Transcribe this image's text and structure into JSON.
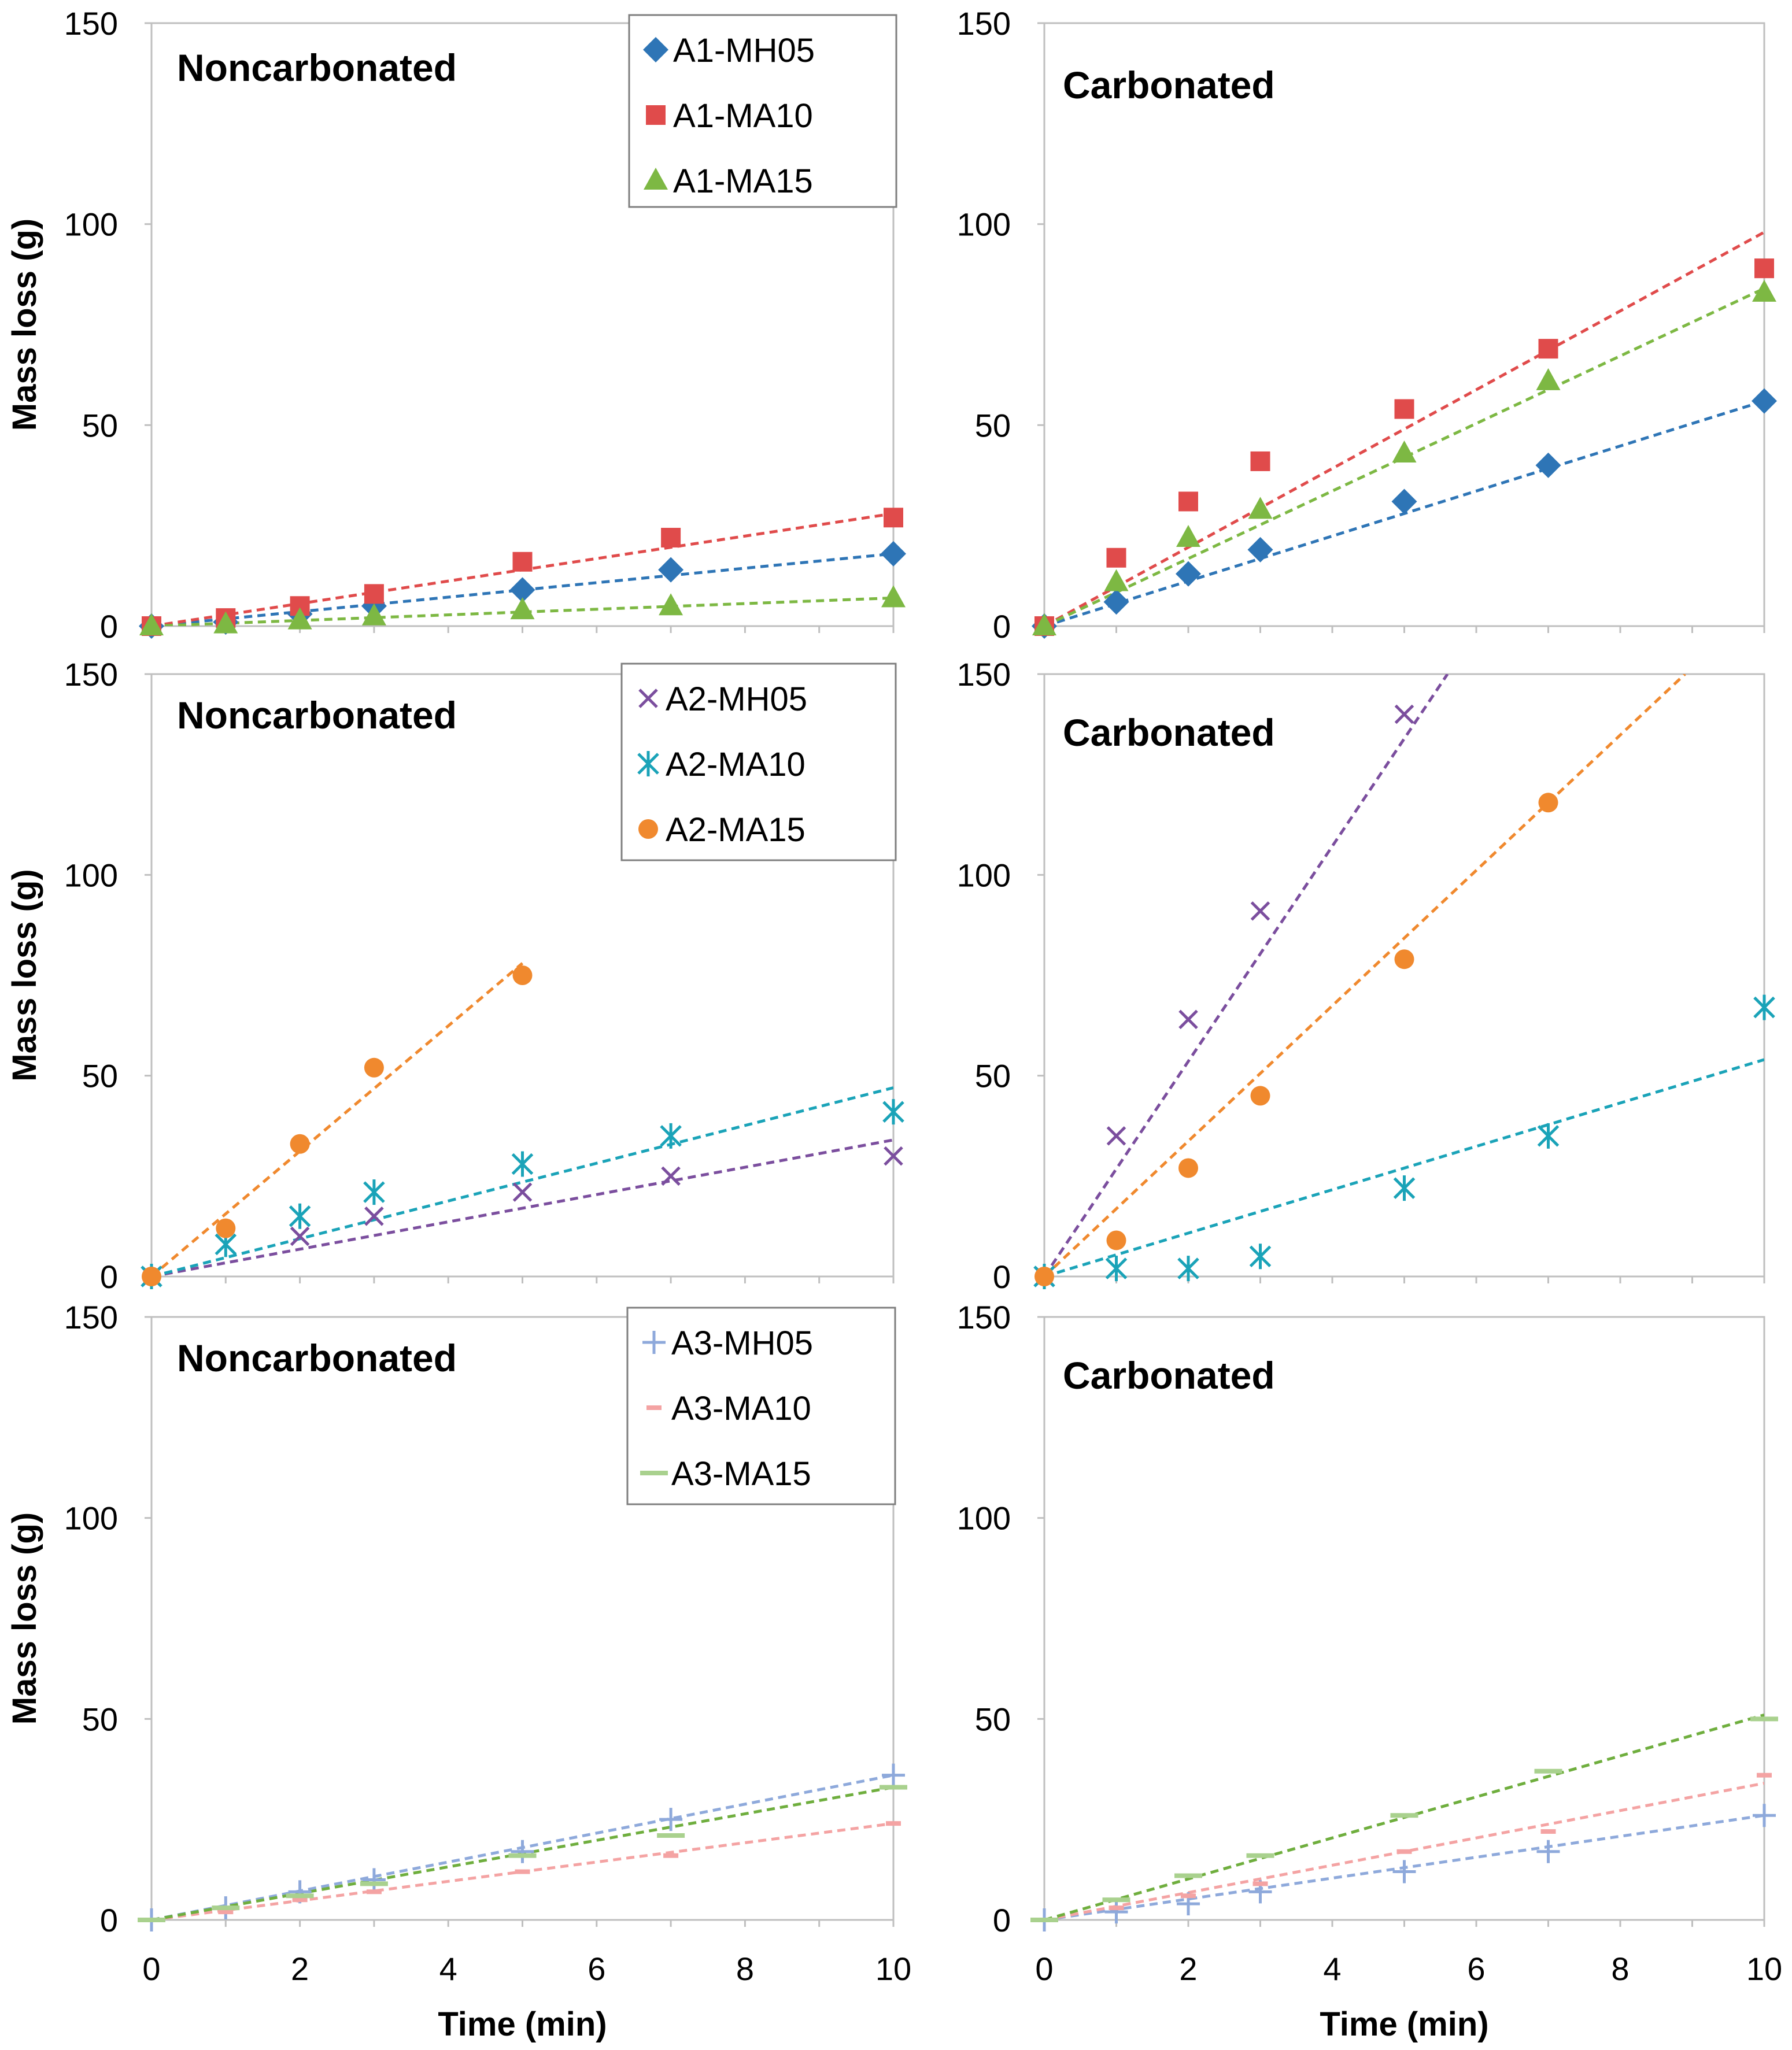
{
  "chart_data": {
    "type": "scatter",
    "description_note": "Six scatter panels with dashed linear trend lines (3 rows x 2 columns).",
    "shared": {
      "xlabel": "Time (min)",
      "ylabel": "Mass loss (g)",
      "xlim": [
        0,
        10
      ],
      "ylim": [
        0,
        150
      ],
      "xticks": [
        "0",
        "2",
        "4",
        "6",
        "8",
        "10"
      ],
      "yticks": [
        "0",
        "50",
        "100",
        "150"
      ]
    },
    "panels": [
      {
        "id": "A1-non",
        "row": 0,
        "col": 0,
        "title": "Noncarbonated",
        "legend": true,
        "series": [
          {
            "name": "A1-MH05",
            "marker": "diamond",
            "color": "#2E75B6",
            "x": [
              0,
              1,
              2,
              3,
              5,
              7,
              10
            ],
            "y": [
              0,
              1,
              3,
              5,
              9,
              14,
              18
            ],
            "trend": [
              0,
              0,
              10,
              18
            ]
          },
          {
            "name": "A1-MA10",
            "marker": "square",
            "color": "#E04B4B",
            "x": [
              0,
              1,
              2,
              3,
              5,
              7,
              10
            ],
            "y": [
              0,
              2,
              5,
              8,
              16,
              22,
              27
            ],
            "trend": [
              0,
              0,
              10,
              28
            ]
          },
          {
            "name": "A1-MA15",
            "marker": "triangle",
            "color": "#7DB843",
            "x": [
              0,
              1,
              2,
              3,
              5,
              7,
              10
            ],
            "y": [
              0,
              0.5,
              1.5,
              2.5,
              4,
              5,
              7
            ],
            "trend": [
              0,
              0,
              10,
              7
            ]
          }
        ]
      },
      {
        "id": "A1-carb",
        "row": 0,
        "col": 1,
        "title": "Carbonated",
        "legend": false,
        "series": [
          {
            "name": "A1-MH05",
            "marker": "diamond",
            "color": "#2E75B6",
            "x": [
              0,
              1,
              2,
              3,
              5,
              7,
              10
            ],
            "y": [
              0,
              6,
              13,
              19,
              31,
              40,
              56
            ],
            "trend": [
              0,
              0,
              10,
              56
            ]
          },
          {
            "name": "A1-MA10",
            "marker": "square",
            "color": "#E04B4B",
            "x": [
              0,
              1,
              2,
              3,
              5,
              7,
              10
            ],
            "y": [
              0,
              17,
              31,
              41,
              54,
              69,
              89
            ],
            "trend": [
              0,
              0,
              10,
              98
            ]
          },
          {
            "name": "A1-MA15",
            "marker": "triangle",
            "color": "#7DB843",
            "x": [
              0,
              1,
              2,
              3,
              5,
              7,
              10
            ],
            "y": [
              0,
              11,
              22,
              29,
              43,
              61,
              83
            ],
            "trend": [
              0,
              0,
              10,
              84
            ]
          }
        ]
      },
      {
        "id": "A2-non",
        "row": 1,
        "col": 0,
        "title": "Noncarbonated",
        "legend": true,
        "series": [
          {
            "name": "A2-MH05",
            "marker": "x",
            "color": "#7B4E9E",
            "x": [
              0,
              2,
              3,
              5,
              7,
              10
            ],
            "y": [
              0,
              10,
              15,
              21,
              25,
              30
            ],
            "trend": [
              0,
              0,
              10,
              34
            ]
          },
          {
            "name": "A2-MA10",
            "marker": "star",
            "color": "#1AA3B8",
            "x": [
              0,
              1,
              2,
              3,
              5,
              7,
              10
            ],
            "y": [
              0,
              8,
              15,
              21,
              28,
              35,
              41
            ],
            "trend": [
              0,
              0,
              10,
              47
            ]
          },
          {
            "name": "A2-MA15",
            "marker": "circle",
            "color": "#F0892E",
            "x": [
              0,
              1,
              2,
              3,
              5
            ],
            "y": [
              0,
              12,
              33,
              52,
              75
            ],
            "trend": [
              0,
              0,
              5,
              78
            ]
          }
        ]
      },
      {
        "id": "A2-carb",
        "row": 1,
        "col": 1,
        "title": "Carbonated",
        "legend": false,
        "series": [
          {
            "name": "A2-MH05",
            "marker": "x",
            "color": "#7B4E9E",
            "x": [
              0,
              1,
              2,
              3,
              5
            ],
            "y": [
              0,
              35,
              64,
              91,
              140
            ],
            "trend": [
              0,
              0,
              5.6,
              150
            ]
          },
          {
            "name": "A2-MA10",
            "marker": "star",
            "color": "#1AA3B8",
            "x": [
              0,
              1,
              2,
              3,
              5,
              7,
              10
            ],
            "y": [
              0,
              2,
              2,
              5,
              22,
              35,
              67
            ],
            "trend": [
              0,
              0,
              10,
              54
            ]
          },
          {
            "name": "A2-MA15",
            "marker": "circle",
            "color": "#F0892E",
            "x": [
              0,
              1,
              2,
              3,
              5,
              7
            ],
            "y": [
              0,
              9,
              27,
              45,
              79,
              118
            ],
            "trend": [
              0,
              0,
              8.9,
              150
            ]
          }
        ]
      },
      {
        "id": "A3-non",
        "row": 2,
        "col": 0,
        "title": "Noncarbonated",
        "legend": true,
        "series": [
          {
            "name": "A3-MH05",
            "marker": "plus",
            "color": "#8EA9DB",
            "x": [
              0,
              1,
              2,
              3,
              5,
              7,
              10
            ],
            "y": [
              0,
              3,
              7,
              10,
              17,
              25,
              36
            ],
            "trend": [
              0,
              0,
              10,
              36
            ]
          },
          {
            "name": "A3-MA10",
            "marker": "dash",
            "color": "#F4A3A3",
            "x": [
              0,
              1,
              2,
              3,
              5,
              7,
              10
            ],
            "y": [
              0,
              2,
              5,
              7,
              12,
              16,
              24
            ],
            "trend": [
              0,
              0,
              10,
              24
            ]
          },
          {
            "name": "A3-MA15",
            "marker": "longdash",
            "color": "#A9D18E",
            "x": [
              0,
              1,
              2,
              3,
              5,
              7,
              10
            ],
            "y": [
              0,
              3,
              6,
              9,
              16,
              21,
              33
            ],
            "trend": [
              0,
              0,
              10,
              33
            ]
          }
        ]
      },
      {
        "id": "A3-carb",
        "row": 2,
        "col": 1,
        "title": "Carbonated",
        "legend": false,
        "series": [
          {
            "name": "A3-MH05",
            "marker": "plus",
            "color": "#8EA9DB",
            "x": [
              0,
              1,
              2,
              3,
              5,
              7,
              10
            ],
            "y": [
              0,
              2,
              4,
              7,
              12,
              17,
              26
            ],
            "trend": [
              0,
              0,
              10,
              26
            ]
          },
          {
            "name": "A3-MA10",
            "marker": "dash",
            "color": "#F4A3A3",
            "x": [
              0,
              1,
              2,
              3,
              5,
              7,
              10
            ],
            "y": [
              0,
              3,
              6,
              9,
              17,
              22,
              36
            ],
            "trend": [
              0,
              0,
              10,
              34
            ]
          },
          {
            "name": "A3-MA15",
            "marker": "longdash",
            "color": "#A9D18E",
            "x": [
              0,
              1,
              2,
              3,
              5,
              7,
              10
            ],
            "y": [
              0,
              5,
              11,
              16,
              26,
              37,
              50
            ],
            "trend": [
              0,
              0,
              10,
              51
            ]
          }
        ]
      }
    ]
  },
  "trend_line_colors": {
    "A1-MH05": "#2E75B6",
    "A1-MA10": "#E04B4B",
    "A1-MA15": "#7DB843",
    "A2-MH05": "#7B4E9E",
    "A2-MA10": "#1AA3B8",
    "A2-MA15": "#F0892E",
    "A3-MH05": "#8EA9DB",
    "A3-MA10": "#F4A3A3",
    "A3-MA15": "#6FAE3E"
  }
}
